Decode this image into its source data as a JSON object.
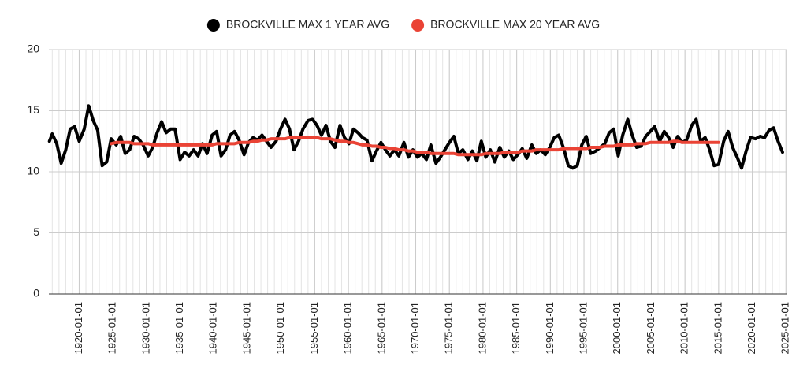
{
  "chart_data": {
    "type": "line",
    "x": [
      "1915-08-01",
      "1916-01-01",
      "1916-09-01",
      "1917-05-01",
      "1918-01-01",
      "1918-09-01",
      "1919-05-01",
      "1920-01-01",
      "1920-10-01",
      "1921-06-01",
      "1922-02-01",
      "1922-10-01",
      "1923-06-01",
      "1924-02-01",
      "1924-10-01",
      "1925-07-01",
      "1926-03-01",
      "1926-11-01",
      "1927-07-01",
      "1928-03-01",
      "1928-11-01",
      "1929-07-01",
      "1930-04-01",
      "1930-12-01",
      "1931-08-01",
      "1932-04-01",
      "1932-12-01",
      "1933-08-01",
      "1934-04-01",
      "1935-01-01",
      "1935-09-01",
      "1936-05-01",
      "1937-01-01",
      "1937-09-01",
      "1938-05-01",
      "1939-01-01",
      "1939-10-01",
      "1940-06-01",
      "1941-02-01",
      "1941-10-01",
      "1942-06-01",
      "1943-02-01",
      "1943-10-01",
      "1944-07-01",
      "1945-03-01",
      "1945-11-01",
      "1946-07-01",
      "1947-03-01",
      "1947-11-01",
      "1948-07-01",
      "1949-04-01",
      "1949-12-01",
      "1950-08-01",
      "1951-04-01",
      "1951-12-01",
      "1952-08-01",
      "1953-04-01",
      "1954-01-01",
      "1954-09-01",
      "1955-05-01",
      "1956-01-01",
      "1956-09-01",
      "1957-05-01",
      "1958-01-01",
      "1958-10-01",
      "1959-06-01",
      "1960-02-01",
      "1960-10-01",
      "1961-06-01",
      "1962-02-01",
      "1962-10-01",
      "1963-07-01",
      "1964-03-01",
      "1964-11-01",
      "1965-07-01",
      "1966-03-01",
      "1966-11-01",
      "1967-07-01",
      "1968-04-01",
      "1968-12-01",
      "1969-08-01",
      "1970-04-01",
      "1970-12-01",
      "1971-08-01",
      "1972-04-01",
      "1973-01-01",
      "1973-09-01",
      "1974-05-01",
      "1975-01-01",
      "1975-09-01",
      "1976-05-01",
      "1977-01-01",
      "1977-10-01",
      "1978-06-01",
      "1979-02-01",
      "1979-10-01",
      "1980-06-01",
      "1981-02-01",
      "1981-10-01",
      "1982-07-01",
      "1983-03-01",
      "1983-11-01",
      "1984-07-01",
      "1985-03-01",
      "1985-11-01",
      "1986-07-01",
      "1987-04-01",
      "1987-12-01",
      "1988-08-01",
      "1989-04-01",
      "1989-12-01",
      "1990-08-01",
      "1991-04-01",
      "1992-01-01",
      "1992-09-01",
      "1993-05-01",
      "1994-01-01",
      "1994-09-01",
      "1995-05-01",
      "1996-01-01",
      "1996-10-01",
      "1997-06-01",
      "1998-02-01",
      "1998-10-01",
      "1999-06-01",
      "2000-02-01",
      "2000-10-01",
      "2001-07-01",
      "2002-03-01",
      "2002-11-01",
      "2003-07-01",
      "2004-03-01",
      "2004-11-01",
      "2005-07-01",
      "2006-04-01",
      "2006-12-01",
      "2007-08-01",
      "2008-04-01",
      "2008-12-01",
      "2009-08-01",
      "2010-04-01",
      "2011-01-01",
      "2011-09-01",
      "2012-05-01",
      "2013-01-01",
      "2013-09-01",
      "2014-05-01",
      "2015-01-01",
      "2015-10-01",
      "2016-06-01",
      "2017-02-01",
      "2017-10-01",
      "2018-06-01",
      "2019-02-01",
      "2019-10-01",
      "2020-07-01",
      "2021-03-01",
      "2021-11-01",
      "2022-07-01",
      "2023-03-01",
      "2023-11-01",
      "2024-07-01"
    ],
    "series": [
      {
        "name": "BROCKVILLE MAX 1 YEAR AVG",
        "color": "#000000",
        "values": [
          12.5,
          13.1,
          12.3,
          10.7,
          11.8,
          13.5,
          13.7,
          12.5,
          13.5,
          15.4,
          14.2,
          13.4,
          10.5,
          10.8,
          12.7,
          12.2,
          12.9,
          11.5,
          11.8,
          12.9,
          12.7,
          12.2,
          11.3,
          12.0,
          13.2,
          14.1,
          13.2,
          13.5,
          13.5,
          11.0,
          11.6,
          11.3,
          11.8,
          11.3,
          12.3,
          11.5,
          13.0,
          13.3,
          11.3,
          11.8,
          13.0,
          13.3,
          12.6,
          11.4,
          12.4,
          12.8,
          12.6,
          13.0,
          12.5,
          12.0,
          12.5,
          13.5,
          14.3,
          13.5,
          11.8,
          12.5,
          13.5,
          14.2,
          14.3,
          13.8,
          13.0,
          13.8,
          12.5,
          12.0,
          13.8,
          12.8,
          12.3,
          13.5,
          13.2,
          12.8,
          12.6,
          10.9,
          11.7,
          12.4,
          11.8,
          11.3,
          11.8,
          11.3,
          12.4,
          11.2,
          11.8,
          11.2,
          11.5,
          11.0,
          12.2,
          10.7,
          11.2,
          11.8,
          12.4,
          12.9,
          11.5,
          11.8,
          11.0,
          11.7,
          10.9,
          12.5,
          11.2,
          11.8,
          10.8,
          12.0,
          11.2,
          11.7,
          11.0,
          11.4,
          11.9,
          11.1,
          12.2,
          11.5,
          11.8,
          11.4,
          12.0,
          12.8,
          13.0,
          11.9,
          10.5,
          10.3,
          10.5,
          12.2,
          12.9,
          11.5,
          11.7,
          12.0,
          12.3,
          13.2,
          13.5,
          11.3,
          13.0,
          14.3,
          13.0,
          12.0,
          12.1,
          12.9,
          13.3,
          13.7,
          12.5,
          13.3,
          12.8,
          12.0,
          12.9,
          12.4,
          12.6,
          13.8,
          14.3,
          12.5,
          12.8,
          11.8,
          10.5,
          10.6,
          12.5,
          13.3,
          12.0,
          11.2,
          10.3,
          11.7,
          12.8,
          12.7,
          12.9,
          12.8,
          13.4,
          13.6,
          12.5,
          11.6
        ]
      },
      {
        "name": "BROCKVILLE MAX 20 YEAR AVG",
        "color": "#ea4335",
        "values": [
          null,
          null,
          null,
          null,
          null,
          null,
          null,
          null,
          null,
          null,
          null,
          null,
          null,
          null,
          12.3,
          12.4,
          12.4,
          12.4,
          12.4,
          12.3,
          12.3,
          12.3,
          12.3,
          12.2,
          12.2,
          12.2,
          12.2,
          12.2,
          12.2,
          12.2,
          12.2,
          12.2,
          12.2,
          12.2,
          12.2,
          12.2,
          12.2,
          12.3,
          12.3,
          12.3,
          12.3,
          12.3,
          12.4,
          12.4,
          12.4,
          12.5,
          12.5,
          12.6,
          12.6,
          12.7,
          12.7,
          12.7,
          12.7,
          12.8,
          12.8,
          12.8,
          12.8,
          12.8,
          12.8,
          12.8,
          12.7,
          12.7,
          12.7,
          12.6,
          12.5,
          12.5,
          12.4,
          12.4,
          12.3,
          12.2,
          12.2,
          12.1,
          12.1,
          12.0,
          12.0,
          11.9,
          11.9,
          11.8,
          11.8,
          11.7,
          11.7,
          11.6,
          11.6,
          11.6,
          11.5,
          11.5,
          11.5,
          11.5,
          11.5,
          11.5,
          11.4,
          11.4,
          11.4,
          11.4,
          11.4,
          11.4,
          11.5,
          11.5,
          11.5,
          11.5,
          11.6,
          11.6,
          11.6,
          11.6,
          11.7,
          11.7,
          11.7,
          11.8,
          11.8,
          11.8,
          11.8,
          11.8,
          11.8,
          11.9,
          11.9,
          11.9,
          11.9,
          11.9,
          11.9,
          12.0,
          12.0,
          12.0,
          12.1,
          12.1,
          12.1,
          12.2,
          12.2,
          12.2,
          12.2,
          12.3,
          12.3,
          12.3,
          12.4,
          12.4,
          12.4,
          12.4,
          12.4,
          12.5,
          12.5,
          12.4,
          12.4,
          12.4,
          12.4,
          12.4,
          12.4,
          12.4,
          12.4,
          12.4,
          null,
          null,
          null,
          null,
          null,
          null,
          null,
          null,
          null,
          null,
          null,
          null,
          null,
          null
        ]
      }
    ],
    "xlim": [
      "1915-07-01",
      "2025-02-01"
    ],
    "xticks": [
      "1920-01-01",
      "1925-01-01",
      "1930-01-01",
      "1935-01-01",
      "1940-01-01",
      "1945-01-01",
      "1950-01-01",
      "1955-01-01",
      "1960-01-01",
      "1965-01-01",
      "1970-01-01",
      "1975-01-01",
      "1980-01-01",
      "1985-01-01",
      "1990-01-01",
      "1995-01-01",
      "2000-01-01",
      "2005-01-01",
      "2010-01-01",
      "2015-01-01",
      "2020-01-01",
      "2025-01-01"
    ],
    "ylim": [
      0,
      20
    ],
    "yticks": [
      0,
      5,
      10,
      15,
      20
    ],
    "grid": true,
    "minor_grid": true,
    "legend": "top"
  }
}
